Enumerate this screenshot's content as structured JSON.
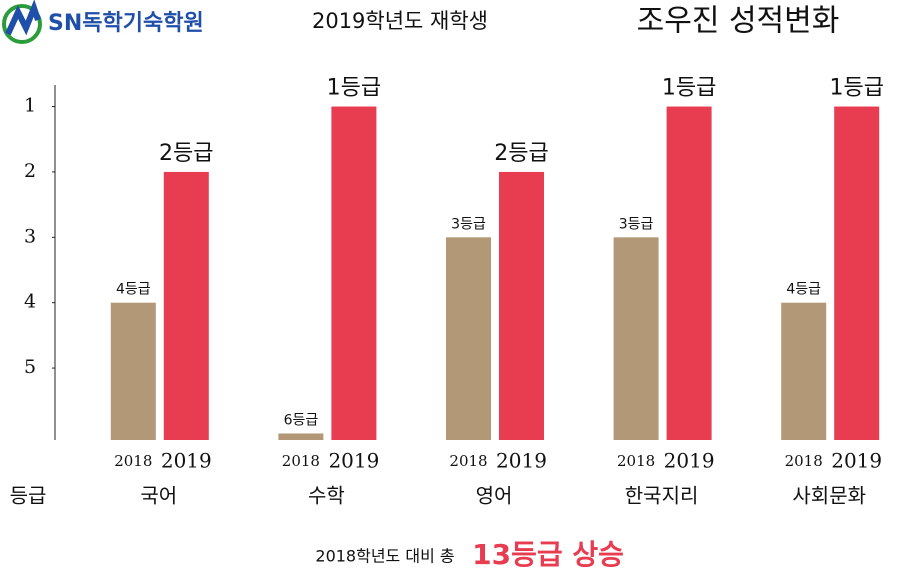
{
  "chart_data": {
    "type": "bar",
    "logo": "SN독학기숙학원",
    "subtitle": "2019학년도 재학생",
    "title": "조우진 성적변화",
    "y_label": "등급",
    "footer": "2018학년도 대비 총",
    "footer_highlight": "13등급 상승",
    "categories": [
      "국어",
      "수학",
      "영어",
      "한국지리",
      "사회문화"
    ],
    "series": [
      {
        "name": "2018",
        "color": "#b39878",
        "values": [
          4,
          6,
          3,
          3,
          4
        ],
        "value_labels": [
          "4등급",
          "6등급",
          "3등급",
          "3등급",
          "4등급"
        ]
      },
      {
        "name": "2019",
        "color": "#e83c51",
        "values": [
          2,
          1,
          2,
          1,
          1
        ],
        "value_labels": [
          "2등급",
          "1등급",
          "2등급",
          "1등급",
          "1등급"
        ]
      }
    ],
    "ylim": [
      6.1,
      0.9
    ],
    "yticks": [
      1,
      2,
      3,
      4,
      5
    ]
  }
}
